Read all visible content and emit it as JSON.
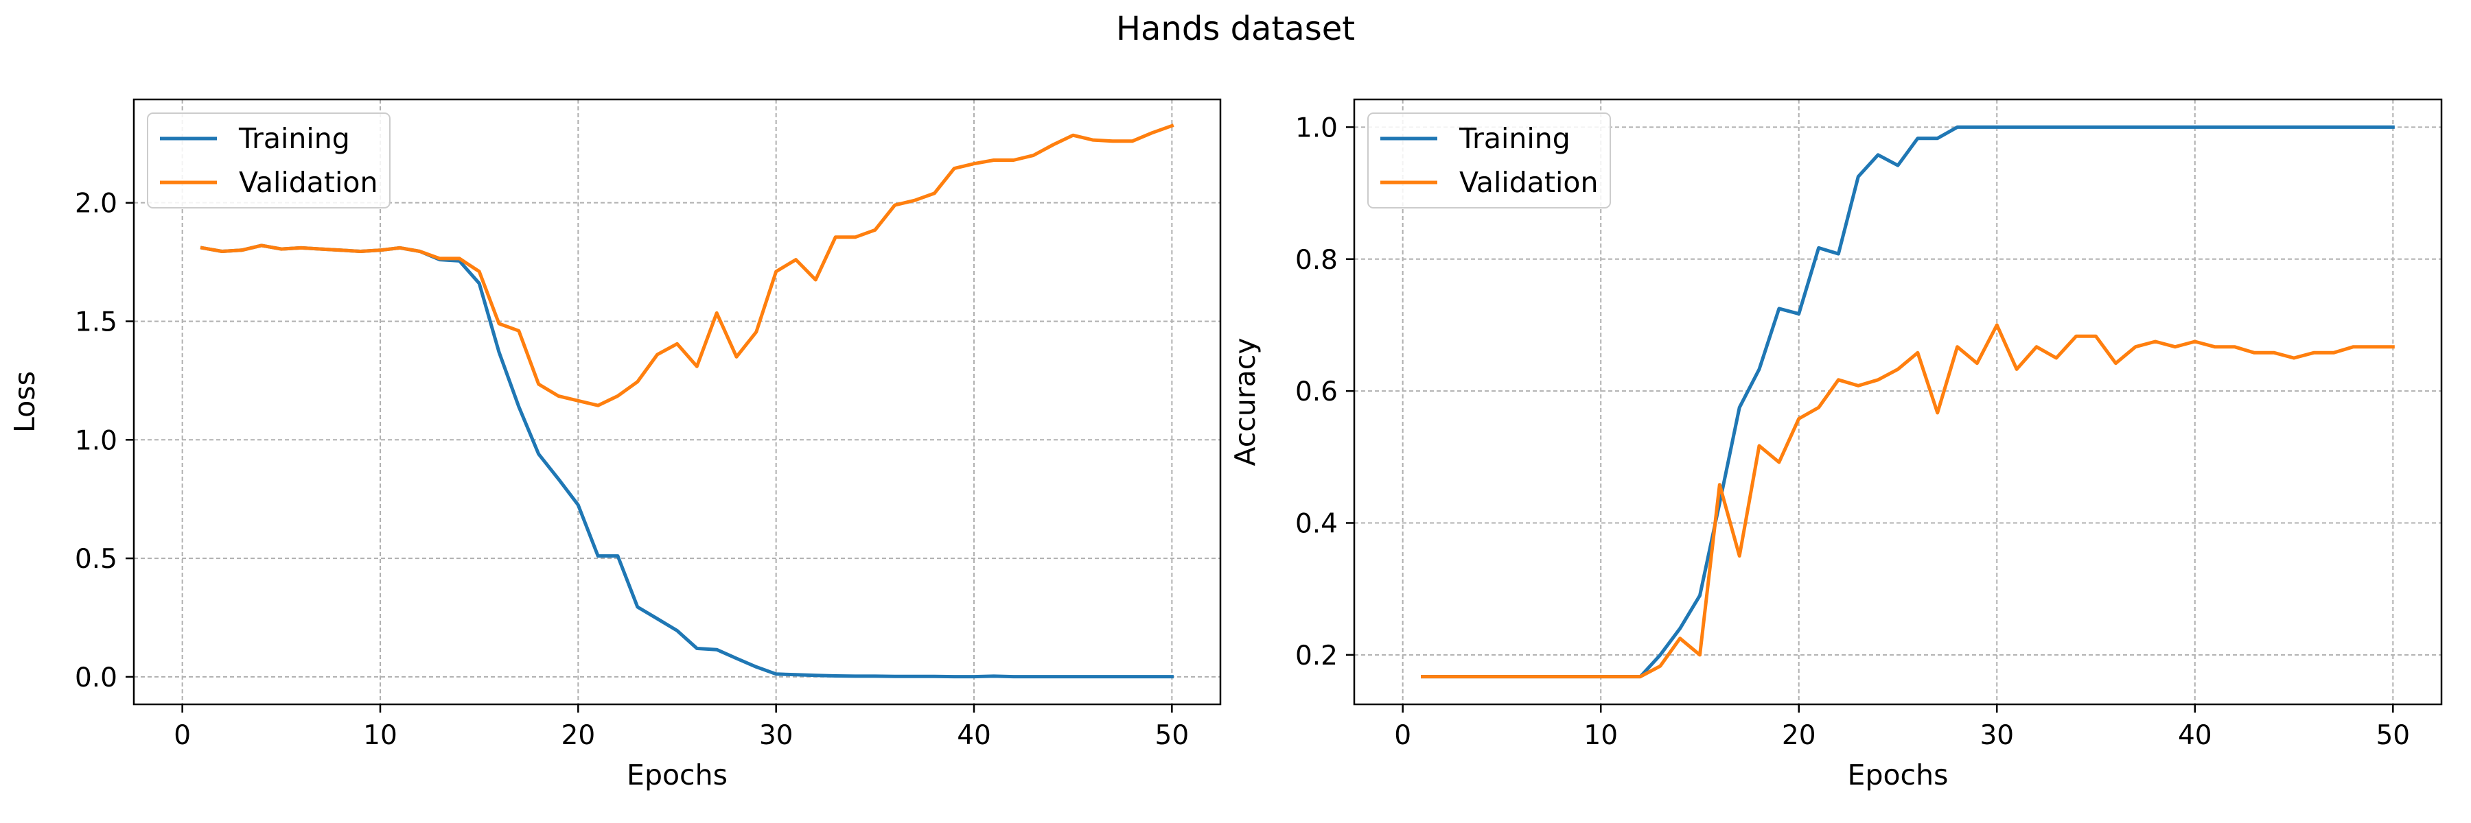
{
  "figure": {
    "suptitle": "Hands dataset"
  },
  "chart_data": [
    {
      "type": "line",
      "title": "",
      "xlabel": "Epochs",
      "ylabel": "Loss",
      "xlim": [
        -2.45,
        52.45
      ],
      "ylim": [
        -0.116,
        2.436
      ],
      "xticks": [
        0,
        10,
        20,
        30,
        40,
        50
      ],
      "yticks": [
        0.0,
        0.5,
        1.0,
        1.5,
        2.0
      ],
      "ytick_labels": [
        "0.0",
        "0.5",
        "1.0",
        "1.5",
        "2.0"
      ],
      "grid": true,
      "legend_position": "upper-left",
      "x": [
        1,
        2,
        3,
        4,
        5,
        6,
        7,
        8,
        9,
        10,
        11,
        12,
        13,
        14,
        15,
        16,
        17,
        18,
        19,
        20,
        21,
        22,
        23,
        24,
        25,
        26,
        27,
        28,
        29,
        30,
        31,
        32,
        33,
        34,
        35,
        36,
        37,
        38,
        39,
        40,
        41,
        42,
        43,
        44,
        45,
        46,
        47,
        48,
        49,
        50
      ],
      "series": [
        {
          "name": "Training",
          "color": "#1f77b4",
          "values": [
            1.81,
            1.795,
            1.8,
            1.82,
            1.805,
            1.81,
            1.805,
            1.8,
            1.795,
            1.8,
            1.81,
            1.795,
            1.76,
            1.755,
            1.66,
            1.37,
            1.14,
            0.94,
            0.835,
            0.725,
            0.51,
            0.51,
            0.295,
            0.245,
            0.195,
            0.12,
            0.115,
            0.078,
            0.042,
            0.012,
            0.009,
            0.006,
            0.004,
            0.003,
            0.003,
            0.002,
            0.002,
            0.002,
            0.001,
            0.001,
            0.003,
            0.001,
            0.001,
            0.001,
            0.001,
            0.001,
            0.001,
            0.001,
            0.001,
            0.001
          ]
        },
        {
          "name": "Validation",
          "color": "#ff7f0e",
          "values": [
            1.81,
            1.795,
            1.8,
            1.82,
            1.805,
            1.81,
            1.805,
            1.8,
            1.795,
            1.8,
            1.81,
            1.795,
            1.765,
            1.765,
            1.71,
            1.49,
            1.46,
            1.235,
            1.185,
            1.165,
            1.145,
            1.185,
            1.245,
            1.36,
            1.405,
            1.31,
            1.535,
            1.35,
            1.455,
            1.71,
            1.76,
            1.675,
            1.855,
            1.855,
            1.885,
            1.99,
            2.01,
            2.04,
            2.145,
            2.165,
            2.18,
            2.18,
            2.2,
            2.245,
            2.285,
            2.265,
            2.26,
            2.26,
            2.295,
            2.325
          ]
        }
      ]
    },
    {
      "type": "line",
      "title": "",
      "xlabel": "Epochs",
      "ylabel": "Accuracy",
      "xlim": [
        -2.45,
        52.45
      ],
      "ylim": [
        0.125,
        1.042
      ],
      "xticks": [
        0,
        10,
        20,
        30,
        40,
        50
      ],
      "yticks": [
        0.2,
        0.4,
        0.6,
        0.8,
        1.0
      ],
      "ytick_labels": [
        "0.2",
        "0.4",
        "0.6",
        "0.8",
        "1.0"
      ],
      "grid": true,
      "legend_position": "upper-left",
      "x": [
        1,
        2,
        3,
        4,
        5,
        6,
        7,
        8,
        9,
        10,
        11,
        12,
        13,
        14,
        15,
        16,
        17,
        18,
        19,
        20,
        21,
        22,
        23,
        24,
        25,
        26,
        27,
        28,
        29,
        30,
        31,
        32,
        33,
        34,
        35,
        36,
        37,
        38,
        39,
        40,
        41,
        42,
        43,
        44,
        45,
        46,
        47,
        48,
        49,
        50
      ],
      "series": [
        {
          "name": "Training",
          "color": "#1f77b4",
          "values": [
            0.167,
            0.167,
            0.167,
            0.167,
            0.167,
            0.167,
            0.167,
            0.167,
            0.167,
            0.167,
            0.167,
            0.167,
            0.2,
            0.24,
            0.29,
            0.43,
            0.575,
            0.633,
            0.725,
            0.717,
            0.817,
            0.808,
            0.925,
            0.958,
            0.942,
            0.983,
            0.983,
            1.0,
            1.0,
            1.0,
            1.0,
            1.0,
            1.0,
            1.0,
            1.0,
            1.0,
            1.0,
            1.0,
            1.0,
            1.0,
            1.0,
            1.0,
            1.0,
            1.0,
            1.0,
            1.0,
            1.0,
            1.0,
            1.0,
            1.0
          ]
        },
        {
          "name": "Validation",
          "color": "#ff7f0e",
          "values": [
            0.167,
            0.167,
            0.167,
            0.167,
            0.167,
            0.167,
            0.167,
            0.167,
            0.167,
            0.167,
            0.167,
            0.167,
            0.183,
            0.225,
            0.2,
            0.458,
            0.35,
            0.517,
            0.492,
            0.558,
            0.575,
            0.617,
            0.608,
            0.617,
            0.633,
            0.658,
            0.567,
            0.667,
            0.642,
            0.7,
            0.633,
            0.667,
            0.65,
            0.683,
            0.683,
            0.642,
            0.667,
            0.675,
            0.667,
            0.675,
            0.667,
            0.667,
            0.658,
            0.658,
            0.65,
            0.658,
            0.658,
            0.667,
            0.667,
            0.667
          ]
        }
      ]
    }
  ]
}
